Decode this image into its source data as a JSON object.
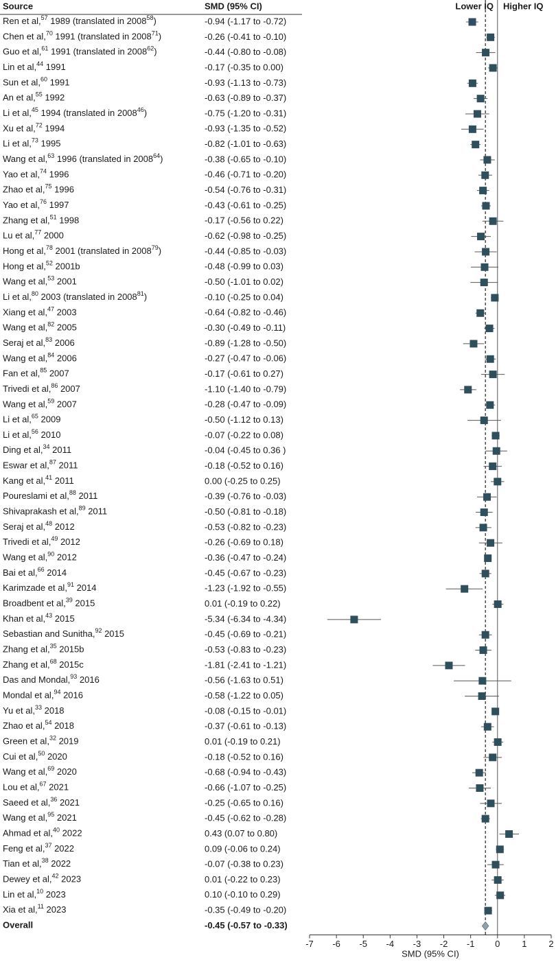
{
  "chart_data": {
    "type": "forest",
    "column_headers": [
      "Source",
      "SMD (95% CI)"
    ],
    "direction_labels": [
      "Lower IQ",
      "Higher IQ"
    ],
    "x_label": "SMD (95% CI)",
    "xlim": [
      -7,
      2
    ],
    "xticks": [
      -7,
      -6,
      -5,
      -4,
      -3,
      -2,
      -1,
      0,
      1,
      2
    ],
    "marker_color": "#2f4f5c",
    "overall_color": "#8fa4ae",
    "studies": [
      {
        "source": [
          "Ren et al,",
          "57",
          " 1989 (translated in 2008",
          "58",
          ")"
        ],
        "smd": -0.94,
        "lower": -1.17,
        "upper": -0.72,
        "smd_label": "-0.94 (-1.17 to -0.72)"
      },
      {
        "source": [
          "Chen et al,",
          "70",
          " 1991 (translated in 2008",
          "71",
          ")"
        ],
        "smd": -0.26,
        "lower": -0.41,
        "upper": -0.1,
        "smd_label": "-0.26 (-0.41 to -0.10)"
      },
      {
        "source": [
          "Guo et al,",
          "61",
          " 1991 (translated in 2008",
          "62",
          ")"
        ],
        "smd": -0.44,
        "lower": -0.8,
        "upper": -0.08,
        "smd_label": "-0.44 (-0.80 to -0.08)"
      },
      {
        "source": [
          "Lin et al,",
          "44",
          " 1991"
        ],
        "smd": -0.17,
        "lower": -0.35,
        "upper": 0.0,
        "smd_label": "-0.17 (-0.35 to 0.00)"
      },
      {
        "source": [
          "Sun et al,",
          "60",
          " 1991"
        ],
        "smd": -0.93,
        "lower": -1.13,
        "upper": -0.73,
        "smd_label": "-0.93 (-1.13 to -0.73)"
      },
      {
        "source": [
          "An et al,",
          "55",
          " 1992"
        ],
        "smd": -0.63,
        "lower": -0.89,
        "upper": -0.37,
        "smd_label": "-0.63 (-0.89 to -0.37)"
      },
      {
        "source": [
          "Li et al,",
          "45",
          " 1994 (translated in 2008",
          "46",
          ")"
        ],
        "smd": -0.75,
        "lower": -1.2,
        "upper": -0.31,
        "smd_label": "-0.75 (-1.20 to -0.31)"
      },
      {
        "source": [
          "Xu et al,",
          "72",
          " 1994"
        ],
        "smd": -0.93,
        "lower": -1.35,
        "upper": -0.52,
        "smd_label": "-0.93 (-1.35 to -0.52)"
      },
      {
        "source": [
          "Li et al,",
          "73",
          " 1995"
        ],
        "smd": -0.82,
        "lower": -1.01,
        "upper": -0.63,
        "smd_label": "-0.82 (-1.01 to -0.63)"
      },
      {
        "source": [
          "Wang et al,",
          "63",
          " 1996 (translated in 2008",
          "64",
          ")"
        ],
        "smd": -0.38,
        "lower": -0.65,
        "upper": -0.1,
        "smd_label": "-0.38 (-0.65 to -0.10)"
      },
      {
        "source": [
          "Yao et al,",
          "74",
          " 1996"
        ],
        "smd": -0.46,
        "lower": -0.71,
        "upper": -0.2,
        "smd_label": "-0.46 (-0.71 to -0.20)"
      },
      {
        "source": [
          "Zhao et al,",
          "75",
          " 1996"
        ],
        "smd": -0.54,
        "lower": -0.76,
        "upper": -0.31,
        "smd_label": "-0.54 (-0.76 to -0.31)"
      },
      {
        "source": [
          "Yao et al,",
          "76",
          " 1997"
        ],
        "smd": -0.43,
        "lower": -0.61,
        "upper": -0.25,
        "smd_label": "-0.43 (-0.61 to -0.25)"
      },
      {
        "source": [
          "Zhang et al,",
          "51",
          " 1998"
        ],
        "smd": -0.17,
        "lower": -0.56,
        "upper": 0.22,
        "smd_label": "-0.17 (-0.56 to 0.22)"
      },
      {
        "source": [
          "Lu et al,",
          "77",
          " 2000"
        ],
        "smd": -0.62,
        "lower": -0.98,
        "upper": -0.25,
        "smd_label": "-0.62 (-0.98 to -0.25)"
      },
      {
        "source": [
          "Hong et al,",
          "78",
          " 2001 (translated in 2008",
          "79",
          ")"
        ],
        "smd": -0.44,
        "lower": -0.85,
        "upper": -0.03,
        "smd_label": "-0.44 (-0.85 to -0.03)"
      },
      {
        "source": [
          "Hong et al,",
          "52",
          " 2001b"
        ],
        "smd": -0.48,
        "lower": -0.99,
        "upper": 0.03,
        "smd_label": "-0.48 (-0.99 to 0.03)"
      },
      {
        "source": [
          "Wang et al,",
          "53",
          " 2001"
        ],
        "smd": -0.5,
        "lower": -1.01,
        "upper": 0.02,
        "smd_label": "-0.50 (-1.01 to 0.02)"
      },
      {
        "source": [
          "Li et al,",
          "80",
          " 2003 (translated in 2008",
          "81",
          ")"
        ],
        "smd": -0.1,
        "lower": -0.25,
        "upper": 0.04,
        "smd_label": "-0.10 (-0.25 to 0.04)"
      },
      {
        "source": [
          "Xiang et al,",
          "47",
          " 2003"
        ],
        "smd": -0.64,
        "lower": -0.82,
        "upper": -0.46,
        "smd_label": "-0.64 (-0.82 to -0.46)"
      },
      {
        "source": [
          "Wang et al,",
          "82",
          " 2005"
        ],
        "smd": -0.3,
        "lower": -0.49,
        "upper": -0.11,
        "smd_label": "-0.30 (-0.49 to -0.11)"
      },
      {
        "source": [
          "Seraj et al,",
          "83",
          " 2006"
        ],
        "smd": -0.89,
        "lower": -1.28,
        "upper": -0.5,
        "smd_label": "-0.89 (-1.28 to -0.50)"
      },
      {
        "source": [
          "Wang et al,",
          "84",
          " 2006"
        ],
        "smd": -0.27,
        "lower": -0.47,
        "upper": -0.06,
        "smd_label": "-0.27 (-0.47 to -0.06)"
      },
      {
        "source": [
          "Fan et al,",
          "85",
          " 2007"
        ],
        "smd": -0.17,
        "lower": -0.61,
        "upper": 0.27,
        "smd_label": "-0.17 (-0.61 to 0.27)"
      },
      {
        "source": [
          "Trivedi et al,",
          "86",
          " 2007"
        ],
        "smd": -1.1,
        "lower": -1.4,
        "upper": -0.79,
        "smd_label": "-1.10 (-1.40 to -0.79)"
      },
      {
        "source": [
          "Wang et al,",
          "59",
          " 2007"
        ],
        "smd": -0.28,
        "lower": -0.47,
        "upper": -0.09,
        "smd_label": "-0.28 (-0.47 to -0.09)"
      },
      {
        "source": [
          "Li et al,",
          "65",
          " 2009"
        ],
        "smd": -0.5,
        "lower": -1.12,
        "upper": 0.13,
        "smd_label": "-0.50 (-1.12 to 0.13)"
      },
      {
        "source": [
          "Li et al,",
          "56",
          " 2010"
        ],
        "smd": -0.07,
        "lower": -0.22,
        "upper": 0.08,
        "smd_label": "-0.07 (-0.22 to 0.08)"
      },
      {
        "source": [
          "Ding et al,",
          "34",
          " 2011"
        ],
        "smd": -0.04,
        "lower": -0.45,
        "upper": 0.36,
        "smd_label": "-0.04 (-0.45 to 0.36 )"
      },
      {
        "source": [
          "Eswar et al,",
          "87",
          " 2011"
        ],
        "smd": -0.18,
        "lower": -0.52,
        "upper": 0.16,
        "smd_label": "-0.18 (-0.52 to 0.16)"
      },
      {
        "source": [
          "Kang et al,",
          "41",
          " 2011"
        ],
        "smd": 0.0,
        "lower": -0.25,
        "upper": 0.25,
        "smd_label": "0.00 (-0.25 to 0.25)"
      },
      {
        "source": [
          "Poureslami et al,",
          "88",
          " 2011"
        ],
        "smd": -0.39,
        "lower": -0.76,
        "upper": -0.03,
        "smd_label": "-0.39 (-0.76 to -0.03)"
      },
      {
        "source": [
          "Shivaprakash et al,",
          "89",
          " 2011"
        ],
        "smd": -0.5,
        "lower": -0.81,
        "upper": -0.18,
        "smd_label": "-0.50 (-0.81 to -0.18)"
      },
      {
        "source": [
          "Seraj et al,",
          "48",
          " 2012"
        ],
        "smd": -0.53,
        "lower": -0.82,
        "upper": -0.23,
        "smd_label": "-0.53 (-0.82 to -0.23)"
      },
      {
        "source": [
          "Trivedi et al,",
          "49",
          " 2012"
        ],
        "smd": -0.26,
        "lower": -0.69,
        "upper": 0.18,
        "smd_label": "-0.26 (-0.69 to 0.18)"
      },
      {
        "source": [
          "Wang et al,",
          "90",
          " 2012"
        ],
        "smd": -0.36,
        "lower": -0.47,
        "upper": -0.24,
        "smd_label": "-0.36 (-0.47 to -0.24)"
      },
      {
        "source": [
          "Bai et al,",
          "66",
          " 2014"
        ],
        "smd": -0.45,
        "lower": -0.67,
        "upper": -0.23,
        "smd_label": "-0.45 (-0.67 to -0.23)"
      },
      {
        "source": [
          "Karimzade et al,",
          "91",
          " 2014"
        ],
        "smd": -1.23,
        "lower": -1.92,
        "upper": -0.55,
        "smd_label": "-1.23 (-1.92 to -0.55)"
      },
      {
        "source": [
          "Broadbent et al,",
          "39",
          " 2015"
        ],
        "smd": 0.01,
        "lower": -0.19,
        "upper": 0.22,
        "smd_label": "0.01 (-0.19 to 0.22)"
      },
      {
        "source": [
          "Khan et al,",
          "43",
          " 2015"
        ],
        "smd": -5.34,
        "lower": -6.34,
        "upper": -4.34,
        "smd_label": "-5.34 (-6.34 to -4.34)"
      },
      {
        "source": [
          "Sebastian and Sunitha,",
          "92",
          " 2015"
        ],
        "smd": -0.45,
        "lower": -0.69,
        "upper": -0.21,
        "smd_label": "-0.45 (-0.69 to -0.21)"
      },
      {
        "source": [
          "Zhang et al,",
          "35",
          " 2015b"
        ],
        "smd": -0.53,
        "lower": -0.83,
        "upper": -0.23,
        "smd_label": "-0.53 (-0.83 to -0.23)"
      },
      {
        "source": [
          "Zhang et al,",
          "68",
          " 2015c"
        ],
        "smd": -1.81,
        "lower": -2.41,
        "upper": -1.21,
        "smd_label": "-1.81 (-2.41 to -1.21)"
      },
      {
        "source": [
          "Das and Mondal,",
          "93",
          " 2016"
        ],
        "smd": -0.56,
        "lower": -1.63,
        "upper": 0.51,
        "smd_label": "-0.56 (-1.63 to 0.51)"
      },
      {
        "source": [
          "Mondal et al,",
          "94",
          " 2016"
        ],
        "smd": -0.58,
        "lower": -1.22,
        "upper": 0.05,
        "smd_label": "-0.58 (-1.22 to 0.05)"
      },
      {
        "source": [
          "Yu et al,",
          "33",
          " 2018"
        ],
        "smd": -0.08,
        "lower": -0.15,
        "upper": -0.01,
        "smd_label": "-0.08 (-0.15 to -0.01)"
      },
      {
        "source": [
          "Zhao et al,",
          "54",
          " 2018"
        ],
        "smd": -0.37,
        "lower": -0.61,
        "upper": -0.13,
        "smd_label": "-0.37 (-0.61 to -0.13)"
      },
      {
        "source": [
          "Green et al,",
          "32",
          " 2019"
        ],
        "smd": 0.01,
        "lower": -0.19,
        "upper": 0.21,
        "smd_label": "0.01 (-0.19 to 0.21)"
      },
      {
        "source": [
          "Cui et al,",
          "50",
          " 2020"
        ],
        "smd": -0.18,
        "lower": -0.52,
        "upper": 0.16,
        "smd_label": "-0.18 (-0.52 to 0.16)"
      },
      {
        "source": [
          "Wang et al,",
          "69",
          " 2020"
        ],
        "smd": -0.68,
        "lower": -0.94,
        "upper": -0.43,
        "smd_label": "-0.68 (-0.94 to -0.43)"
      },
      {
        "source": [
          "Lou et al,",
          "67",
          " 2021"
        ],
        "smd": -0.66,
        "lower": -1.07,
        "upper": -0.25,
        "smd_label": "-0.66 (-1.07 to -0.25)"
      },
      {
        "source": [
          "Saeed et al,",
          "36",
          " 2021"
        ],
        "smd": -0.25,
        "lower": -0.65,
        "upper": 0.16,
        "smd_label": "-0.25 (-0.65 to 0.16)"
      },
      {
        "source": [
          "Wang et al,",
          "95",
          " 2021"
        ],
        "smd": -0.45,
        "lower": -0.62,
        "upper": -0.28,
        "smd_label": "-0.45 (-0.62 to -0.28)"
      },
      {
        "source": [
          "Ahmad et al,",
          "40",
          " 2022"
        ],
        "smd": 0.43,
        "lower": 0.07,
        "upper": 0.8,
        "smd_label": "0.43 (0.07 to 0.80)"
      },
      {
        "source": [
          "Feng et al,",
          "37",
          " 2022"
        ],
        "smd": 0.09,
        "lower": -0.06,
        "upper": 0.24,
        "smd_label": "0.09 (-0.06 to 0.24)"
      },
      {
        "source": [
          "Tian et al,",
          "38",
          " 2022"
        ],
        "smd": -0.07,
        "lower": -0.38,
        "upper": 0.23,
        "smd_label": "-0.07 (-0.38 to 0.23)"
      },
      {
        "source": [
          "Dewey et al,",
          "42",
          " 2023"
        ],
        "smd": 0.01,
        "lower": -0.22,
        "upper": 0.23,
        "smd_label": "0.01 (-0.22 to 0.23)"
      },
      {
        "source": [
          "Lin et al,",
          "10",
          " 2023"
        ],
        "smd": 0.1,
        "lower": -0.1,
        "upper": 0.29,
        "smd_label": "0.10 (-0.10 to 0.29)"
      },
      {
        "source": [
          "Xia et al,",
          "11",
          " 2023"
        ],
        "smd": -0.35,
        "lower": -0.49,
        "upper": -0.2,
        "smd_label": "-0.35 (-0.49 to -0.20)"
      }
    ],
    "overall": {
      "source": [
        "Overall"
      ],
      "smd": -0.45,
      "lower": -0.57,
      "upper": -0.33,
      "smd_label": "-0.45 (-0.57 to -0.33)"
    }
  }
}
